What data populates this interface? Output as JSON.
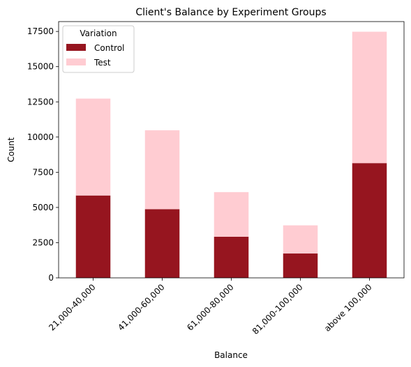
{
  "chart_data": {
    "type": "bar",
    "stacked": true,
    "title": "Client's Balance by Experiment Groups",
    "xlabel": "Balance",
    "ylabel": "Count",
    "ylim": [
      0,
      18200
    ],
    "yticks": [
      0,
      2500,
      5000,
      7500,
      10000,
      12500,
      15000,
      17500
    ],
    "categories": [
      "21,000-40,000",
      "41,000-60,000",
      "61,000-80,000",
      "81,000-100,000",
      "above 100,000"
    ],
    "series": [
      {
        "name": "Control",
        "color": "#96151f",
        "values": [
          5850,
          4880,
          2920,
          1730,
          8150
        ]
      },
      {
        "name": "Test",
        "color": "#ffccd2",
        "values": [
          6880,
          5600,
          3170,
          2000,
          9330
        ]
      }
    ],
    "legend": {
      "title": "Variation",
      "position": "top-left"
    },
    "grid": false
  }
}
